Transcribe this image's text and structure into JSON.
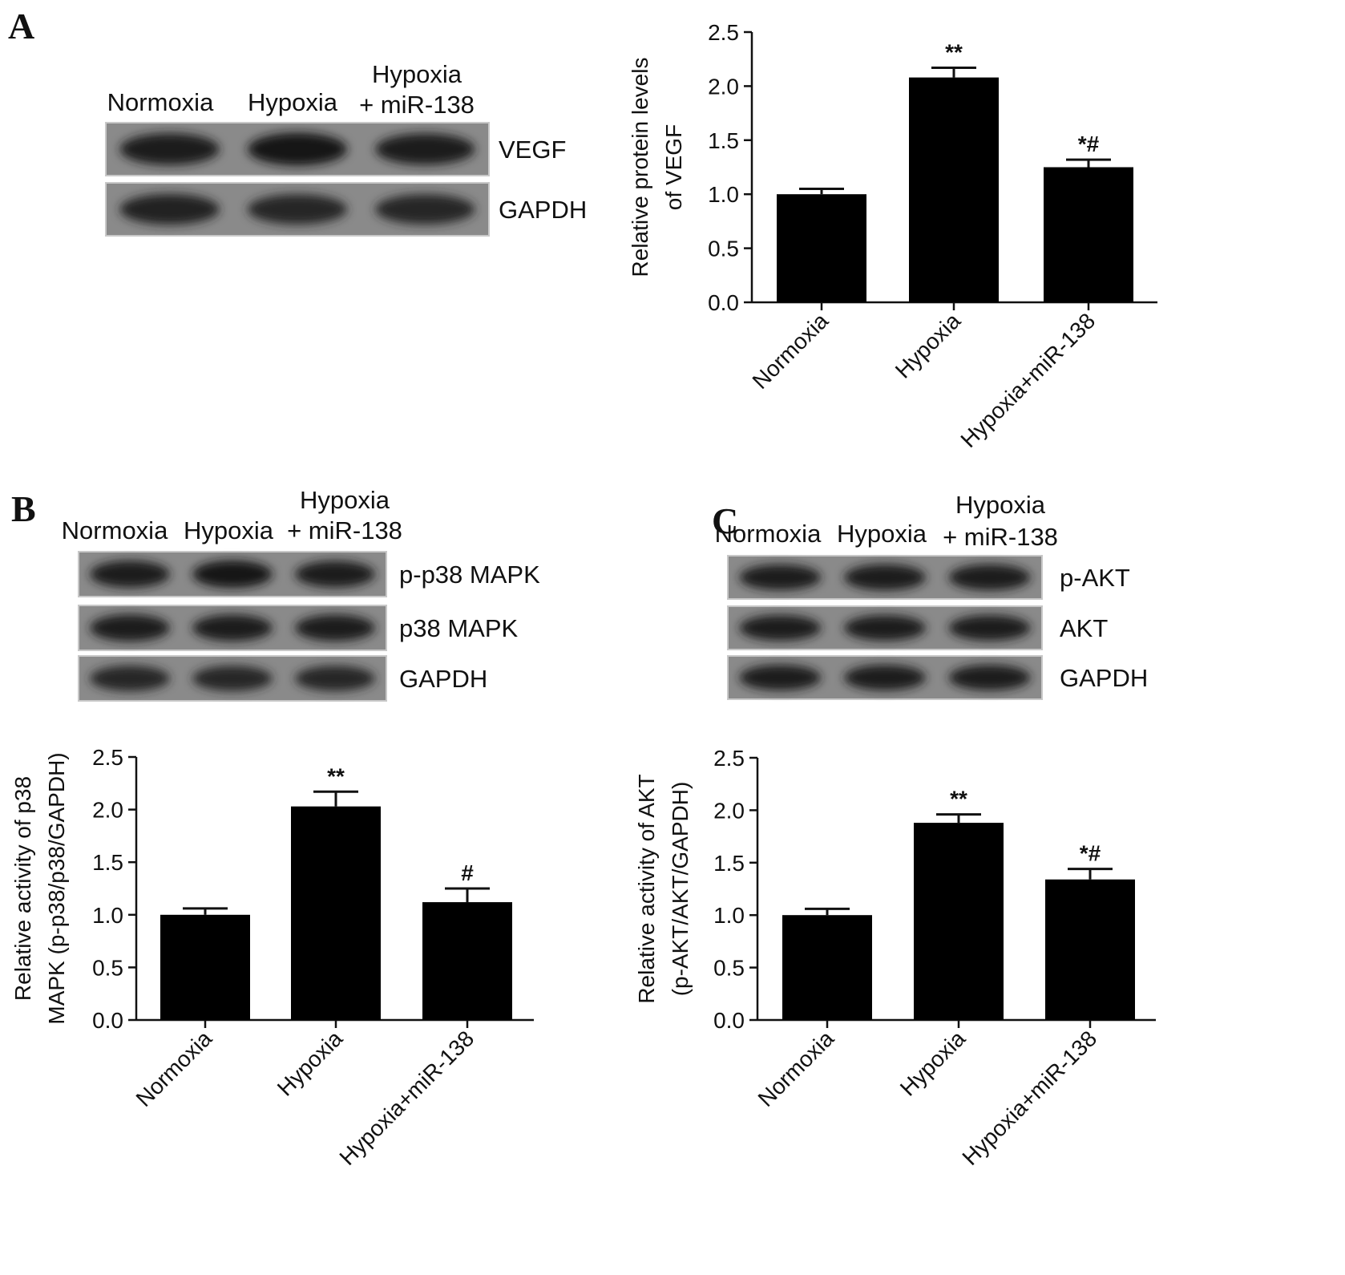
{
  "panels": [
    {
      "letter": "A",
      "blot": {
        "lanes": [
          {
            "lines": [
              "Normoxia"
            ]
          },
          {
            "lines": [
              "Hypoxia"
            ]
          },
          {
            "lines": [
              "Hypoxia",
              "+ miR-138"
            ]
          }
        ],
        "rows": [
          {
            "label": "VEGF",
            "intensity": [
              0.9,
              1.0,
              0.85
            ]
          },
          {
            "label": "GAPDH",
            "intensity": [
              0.8,
              0.75,
              0.75
            ]
          }
        ]
      }
    },
    {
      "letter": "B",
      "blot": {
        "lanes": [
          {
            "lines": [
              "Normoxia"
            ]
          },
          {
            "lines": [
              "Hypoxia"
            ]
          },
          {
            "lines": [
              "Hypoxia",
              "+ miR-138"
            ]
          }
        ],
        "rows": [
          {
            "label": "p-p38 MAPK",
            "intensity": [
              0.9,
              0.95,
              0.85
            ]
          },
          {
            "label": "p38 MAPK",
            "intensity": [
              0.9,
              0.85,
              0.85
            ]
          },
          {
            "label": "GAPDH",
            "intensity": [
              0.75,
              0.72,
              0.72
            ]
          }
        ]
      }
    },
    {
      "letter": "C",
      "blot": {
        "lanes": [
          {
            "lines": [
              "Normoxia"
            ]
          },
          {
            "lines": [
              "Hypoxia"
            ]
          },
          {
            "lines": [
              "Hypoxia",
              "+ miR-138"
            ]
          }
        ],
        "rows": [
          {
            "label": "p-AKT",
            "intensity": [
              0.85,
              0.9,
              0.9
            ]
          },
          {
            "label": "AKT",
            "intensity": [
              0.85,
              0.85,
              0.85
            ]
          },
          {
            "label": "GAPDH",
            "intensity": [
              0.85,
              0.85,
              0.85
            ]
          }
        ]
      }
    }
  ],
  "chart_data": [
    {
      "type": "bar",
      "panel": "A",
      "categories": [
        "Normoxia",
        "Hypoxia",
        "Hypoxia+miR-138"
      ],
      "values": [
        1.0,
        2.08,
        1.25
      ],
      "errors": [
        0.05,
        0.09,
        0.07
      ],
      "significance": [
        "",
        "**",
        "*#"
      ],
      "ylabel_lines": [
        "Relative protein levels",
        "of VEGF"
      ],
      "ylim": [
        0,
        2.5
      ],
      "yticks": [
        0.0,
        0.5,
        1.0,
        1.5,
        2.0,
        2.5
      ],
      "ytick_labels": [
        "0.0",
        "0.5",
        "1.0",
        "1.5",
        "2.0",
        "2.5"
      ],
      "bar_color": "#000000",
      "grid": false
    },
    {
      "type": "bar",
      "panel": "B",
      "categories": [
        "Normoxia",
        "Hypoxia",
        "Hypoxia+miR-138"
      ],
      "values": [
        1.0,
        2.03,
        1.12
      ],
      "errors": [
        0.06,
        0.14,
        0.13
      ],
      "significance": [
        "",
        "**",
        "#"
      ],
      "ylabel_lines": [
        "Relative activity of p38",
        "MAPK (p-p38/p38/GAPDH)"
      ],
      "ylim": [
        0,
        2.5
      ],
      "yticks": [
        0.0,
        0.5,
        1.0,
        1.5,
        2.0,
        2.5
      ],
      "ytick_labels": [
        "0.0",
        "0.5",
        "1.0",
        "1.5",
        "2.0",
        "2.5"
      ],
      "bar_color": "#000000",
      "grid": false
    },
    {
      "type": "bar",
      "panel": "C",
      "categories": [
        "Normoxia",
        "Hypoxia",
        "Hypoxia+miR-138"
      ],
      "values": [
        1.0,
        1.88,
        1.34
      ],
      "errors": [
        0.06,
        0.08,
        0.1
      ],
      "significance": [
        "",
        "**",
        "*#"
      ],
      "ylabel_lines": [
        "Relative activity of AKT",
        "(p-AKT/AKT/GAPDH)"
      ],
      "ylim": [
        0,
        2.5
      ],
      "yticks": [
        0.0,
        0.5,
        1.0,
        1.5,
        2.0,
        2.5
      ],
      "ytick_labels": [
        "0.0",
        "0.5",
        "1.0",
        "1.5",
        "2.0",
        "2.5"
      ],
      "bar_color": "#000000",
      "grid": false
    }
  ]
}
